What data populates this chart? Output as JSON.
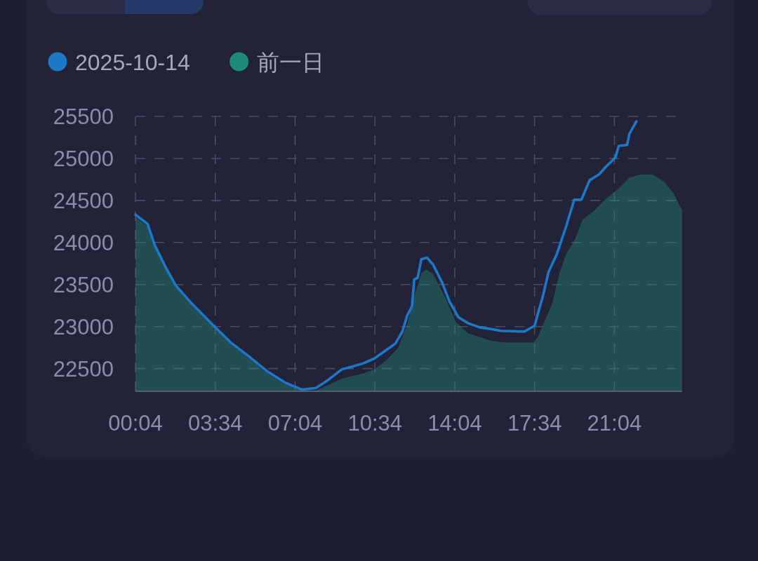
{
  "chart_data": {
    "type": "line",
    "legend": "top left",
    "grid": true,
    "xlim": [
      0.0667,
      24.03
    ],
    "xticks": [
      {
        "value": 0.0667,
        "label": "00:04"
      },
      {
        "value": 3.5667,
        "label": "03:34"
      },
      {
        "value": 7.0667,
        "label": "07:04"
      },
      {
        "value": 10.5667,
        "label": "10:34"
      },
      {
        "value": 14.0667,
        "label": "14:04"
      },
      {
        "value": 17.5667,
        "label": "17:34"
      },
      {
        "value": 21.0667,
        "label": "21:04"
      }
    ],
    "ylim": [
      22230,
      25500
    ],
    "yticks": [
      22500,
      23000,
      23500,
      24000,
      24500,
      25000,
      25500
    ],
    "series": [
      {
        "name": "2025-10-14",
        "color": "#1e78c8",
        "x": [
          0.0667,
          0.6,
          0.91,
          1.42,
          1.83,
          2.55,
          3.57,
          4.29,
          5.11,
          5.83,
          6.65,
          7.37,
          7.98,
          8.49,
          9.11,
          9.52,
          10.03,
          10.54,
          11.06,
          11.47,
          11.77,
          11.98,
          12.19,
          12.29,
          12.44,
          12.6,
          12.85,
          13.11,
          13.52,
          13.83,
          14.23,
          14.65,
          15.16,
          15.67,
          16.08,
          17.11,
          17.57,
          17.72,
          17.93,
          18.18,
          18.54,
          18.95,
          19.16,
          19.31,
          19.62,
          19.98,
          20.39,
          20.69,
          21.11,
          21.26,
          21.62,
          21.72,
          22.03
        ],
        "values": [
          24330,
          24220,
          23970,
          23690,
          23490,
          23270,
          22990,
          22800,
          22630,
          22470,
          22330,
          22250,
          22270,
          22360,
          22490,
          22520,
          22560,
          22620,
          22720,
          22800,
          22940,
          23130,
          23240,
          23560,
          23580,
          23800,
          23820,
          23740,
          23520,
          23300,
          23110,
          23040,
          22990,
          22970,
          22950,
          22940,
          23010,
          23160,
          23360,
          23650,
          23860,
          24190,
          24380,
          24510,
          24510,
          24740,
          24810,
          24900,
          25010,
          25150,
          25160,
          25290,
          25440
        ]
      },
      {
        "name": "前一日",
        "type": "area",
        "color": "#1e8a7a",
        "x": [
          0.0667,
          0.6,
          0.91,
          1.42,
          1.83,
          2.55,
          3.57,
          4.29,
          5.11,
          5.83,
          6.65,
          7.37,
          7.98,
          8.49,
          9.11,
          9.52,
          10.03,
          10.54,
          11.06,
          11.57,
          11.98,
          12.29,
          12.6,
          12.8,
          13.11,
          13.62,
          14.13,
          14.65,
          15.67,
          16.28,
          17.51,
          17.72,
          18.03,
          18.34,
          18.65,
          18.95,
          19.36,
          19.67,
          20.18,
          20.69,
          21.21,
          21.72,
          22.23,
          22.75,
          23.26,
          23.67,
          23.98,
          24.03
        ],
        "values": [
          24300,
          24190,
          23950,
          23670,
          23470,
          23250,
          22970,
          22780,
          22610,
          22450,
          22310,
          22240,
          22240,
          22300,
          22380,
          22410,
          22440,
          22490,
          22600,
          22740,
          23020,
          23360,
          23630,
          23680,
          23630,
          23360,
          23050,
          22920,
          22830,
          22810,
          22810,
          22880,
          23080,
          23270,
          23630,
          23860,
          24050,
          24270,
          24380,
          24520,
          24630,
          24770,
          24810,
          24810,
          24720,
          24580,
          24410,
          24400
        ]
      }
    ]
  }
}
